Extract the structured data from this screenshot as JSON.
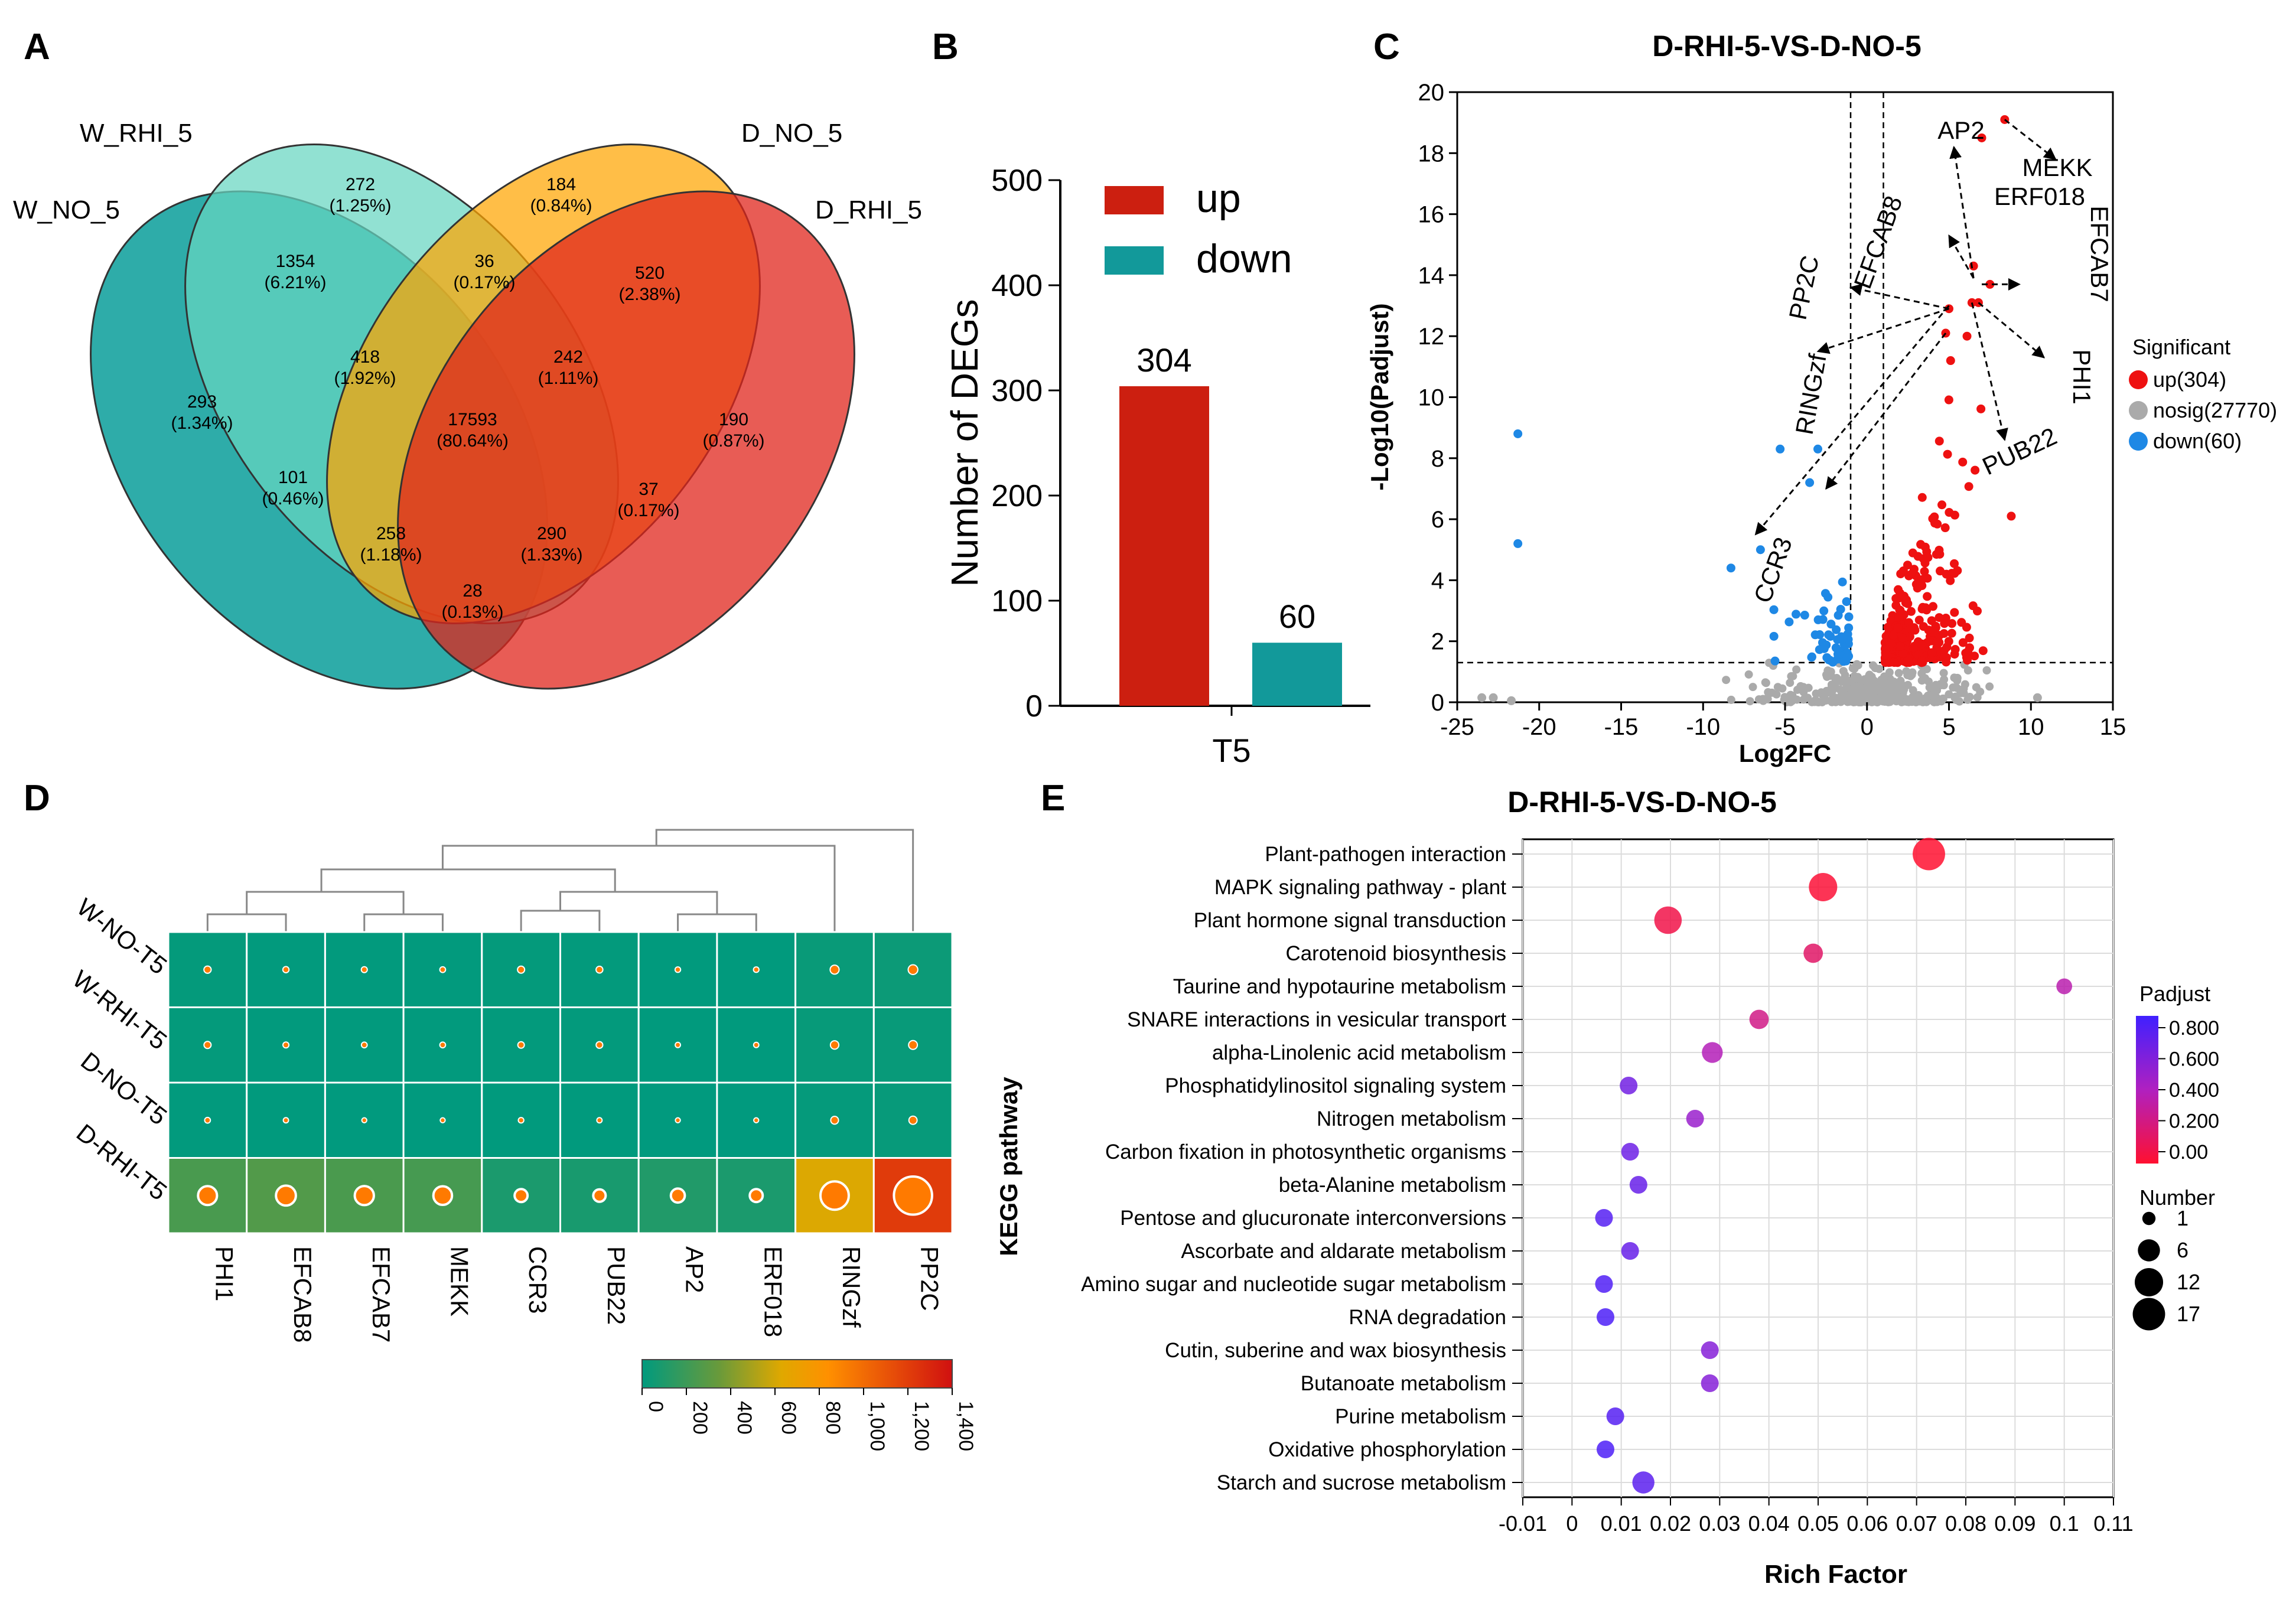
{
  "panel_letters": [
    "A",
    "B",
    "C",
    "D",
    "E"
  ],
  "chart_data": [
    {
      "panel": "A",
      "type": "venn",
      "sets": [
        {
          "name": "W_NO_5",
          "color": "#009a96"
        },
        {
          "name": "W_RHI_5",
          "color": "#66d6c0"
        },
        {
          "name": "D_NO_5",
          "color": "#ffa500"
        },
        {
          "name": "D_RHI_5",
          "color": "#e0261c"
        }
      ],
      "regions": [
        {
          "count": "272",
          "pct": "(1.25%)"
        },
        {
          "count": "184",
          "pct": "(0.84%)"
        },
        {
          "count": "36",
          "pct": "(0.17%)"
        },
        {
          "count": "1354",
          "pct": "(6.21%)"
        },
        {
          "count": "520",
          "pct": "(2.38%)"
        },
        {
          "count": "418",
          "pct": "(1.92%)"
        },
        {
          "count": "242",
          "pct": "(1.11%)"
        },
        {
          "count": "293",
          "pct": "(1.34%)"
        },
        {
          "count": "17593",
          "pct": "(80.64%)"
        },
        {
          "count": "190",
          "pct": "(0.87%)"
        },
        {
          "count": "101",
          "pct": "(0.46%)"
        },
        {
          "count": "37",
          "pct": "(0.17%)"
        },
        {
          "count": "258",
          "pct": "(1.18%)"
        },
        {
          "count": "290",
          "pct": "(1.33%)"
        },
        {
          "count": "28",
          "pct": "(0.13%)"
        }
      ]
    },
    {
      "panel": "B",
      "type": "bar",
      "categories": [
        "T5"
      ],
      "series": [
        {
          "name": "up",
          "values": [
            304
          ],
          "color": "#cc1f10"
        },
        {
          "name": "down",
          "values": [
            60
          ],
          "color": "#12999a"
        }
      ],
      "value_labels": [
        "304",
        "60"
      ],
      "ylabel": "Number of DEGs",
      "ylim": [
        0,
        500
      ],
      "yticks": [
        "0",
        "100",
        "200",
        "300",
        "400",
        "500"
      ]
    },
    {
      "panel": "C",
      "type": "scatter",
      "title": "D-RHI-5-VS-D-NO-5",
      "xlabel": "Log2FC",
      "ylabel": "-Log10(Padjust)",
      "xlim": [
        -25,
        15
      ],
      "ylim": [
        0,
        20
      ],
      "xticks": [
        "-25",
        "-20",
        "-15",
        "-10",
        "-5",
        "0",
        "5",
        "10",
        "15"
      ],
      "yticks": [
        "0",
        "2",
        "4",
        "6",
        "8",
        "10",
        "12",
        "14",
        "16",
        "18",
        "20"
      ],
      "vlines": [
        -1,
        1
      ],
      "hline": 1.3,
      "legend_title": "Significant",
      "legend": [
        {
          "label": "up(304)",
          "color": "#ee1111"
        },
        {
          "label": "nosig(27770)",
          "color": "#aaaaaa"
        },
        {
          "label": "down(60)",
          "color": "#1e88e5"
        }
      ],
      "outlier_points": [
        {
          "x": -21.3,
          "y": 8.8,
          "group": "down"
        },
        {
          "x": -21.3,
          "y": 5.2,
          "group": "down"
        },
        {
          "x": -23.5,
          "y": 0.15,
          "group": "nosig"
        },
        {
          "x": -22.8,
          "y": 0.15,
          "group": "nosig"
        },
        {
          "x": -21.7,
          "y": 0.05,
          "group": "nosig"
        },
        {
          "x": 10.4,
          "y": 0.15,
          "group": "nosig"
        },
        {
          "x": 8.8,
          "y": 6.1,
          "group": "up"
        },
        {
          "x": 8.4,
          "y": 19.1,
          "group": "up"
        },
        {
          "x": 7.0,
          "y": 18.5,
          "group": "up"
        },
        {
          "x": 7.5,
          "y": 13.7,
          "group": "up"
        },
        {
          "x": 6.8,
          "y": 13.1,
          "group": "up"
        },
        {
          "x": 6.5,
          "y": 14.3,
          "group": "up"
        },
        {
          "x": 6.4,
          "y": 13.1,
          "group": "up"
        },
        {
          "x": 5.0,
          "y": 12.9,
          "group": "up"
        },
        {
          "x": 4.8,
          "y": 12.1,
          "group": "up"
        },
        {
          "x": 6.1,
          "y": 12.0,
          "group": "up"
        },
        {
          "x": 5.1,
          "y": 11.2,
          "group": "up"
        },
        {
          "x": -5.3,
          "y": 8.3,
          "group": "down"
        },
        {
          "x": -3.0,
          "y": 8.3,
          "group": "down"
        },
        {
          "x": -3.5,
          "y": 7.2,
          "group": "down"
        },
        {
          "x": -8.3,
          "y": 4.4,
          "group": "down"
        },
        {
          "x": -6.5,
          "y": 5.0,
          "group": "down"
        }
      ],
      "annotations": [
        {
          "label": "AP2",
          "rotate": 0
        },
        {
          "label": "MEKK",
          "rotate": 0
        },
        {
          "label": "ERF018",
          "rotate": 0
        },
        {
          "label": "EFCAB8",
          "rotate": -70
        },
        {
          "label": "EFCAB7",
          "rotate": 90
        },
        {
          "label": "PHI1",
          "rotate": 90
        },
        {
          "label": "PP2C",
          "rotate": -78
        },
        {
          "label": "RINGzf",
          "rotate": -80
        },
        {
          "label": "PUB22",
          "rotate": -25
        },
        {
          "label": "CCR3",
          "rotate": -70
        }
      ]
    },
    {
      "panel": "D",
      "type": "heatmap",
      "rows": [
        "W-NO-T5",
        "W-RHI-T5",
        "D-NO-T5",
        "D-RHI-T5"
      ],
      "columns": [
        "PHI1",
        "EFCAB8",
        "EFCAB7",
        "MEKK",
        "CCR3",
        "PUB22",
        "AP2",
        "ERF018",
        "RINGzf",
        "PP2C"
      ],
      "values": [
        [
          14,
          7,
          6,
          5,
          13,
          11,
          4,
          4,
          30,
          38
        ],
        [
          13,
          6,
          5,
          5,
          9,
          10,
          3,
          3,
          24,
          28
        ],
        [
          5,
          3,
          2,
          2,
          4,
          3,
          2,
          2,
          18,
          22
        ],
        [
          240,
          270,
          245,
          230,
          90,
          80,
          110,
          90,
          620,
          1210
        ]
      ],
      "scale_min": 0,
      "scale_max": 1400,
      "scale_ticks": [
        "0",
        "200",
        "400",
        "600",
        "800",
        "1,000",
        "1,200",
        "1,400"
      ]
    },
    {
      "panel": "E",
      "type": "scatter",
      "title": "D-RHI-5-VS-D-NO-5",
      "xlabel": "Rich Factor",
      "ylabel": "KEGG pathway",
      "xlim": [
        -0.01,
        0.11
      ],
      "xticks": [
        "-0.01",
        "0",
        "0.01",
        "0.02",
        "0.03",
        "0.04",
        "0.05",
        "0.06",
        "0.07",
        "0.08",
        "0.09",
        "0.1",
        "0.11"
      ],
      "pathways": [
        {
          "name": "Plant-pathogen interaction",
          "x": 0.0725,
          "padj": 0.0,
          "number": 17
        },
        {
          "name": "MAPK signaling pathway - plant",
          "x": 0.051,
          "padj": 0.02,
          "number": 12
        },
        {
          "name": "Plant hormone signal transduction",
          "x": 0.0195,
          "padj": 0.07,
          "number": 11
        },
        {
          "name": "Carotenoid biosynthesis",
          "x": 0.049,
          "padj": 0.15,
          "number": 4
        },
        {
          "name": "Taurine and hypotaurine metabolism",
          "x": 0.1,
          "padj": 0.35,
          "number": 2
        },
        {
          "name": "SNARE interactions in vesicular transport",
          "x": 0.038,
          "padj": 0.24,
          "number": 4
        },
        {
          "name": "alpha-Linolenic acid metabolism",
          "x": 0.0285,
          "padj": 0.38,
          "number": 5
        },
        {
          "name": "Phosphatidylinositol signaling system",
          "x": 0.0115,
          "padj": 0.62,
          "number": 3
        },
        {
          "name": "Nitrogen metabolism",
          "x": 0.025,
          "padj": 0.48,
          "number": 3
        },
        {
          "name": "Carbon fixation in photosynthetic organisms",
          "x": 0.0118,
          "padj": 0.64,
          "number": 3
        },
        {
          "name": "beta-Alanine metabolism",
          "x": 0.0135,
          "padj": 0.66,
          "number": 3
        },
        {
          "name": "Pentose and glucuronate interconversions",
          "x": 0.0065,
          "padj": 0.72,
          "number": 3
        },
        {
          "name": "Ascorbate and aldarate metabolism",
          "x": 0.0118,
          "padj": 0.66,
          "number": 3
        },
        {
          "name": "Amino sugar and nucleotide sugar metabolism",
          "x": 0.0065,
          "padj": 0.74,
          "number": 3
        },
        {
          "name": "RNA degradation",
          "x": 0.0068,
          "padj": 0.75,
          "number": 3
        },
        {
          "name": "Cutin, suberine and wax biosynthesis",
          "x": 0.028,
          "padj": 0.55,
          "number": 3
        },
        {
          "name": "Butanoate metabolism",
          "x": 0.028,
          "padj": 0.55,
          "number": 3
        },
        {
          "name": "Purine metabolism",
          "x": 0.0088,
          "padj": 0.72,
          "number": 3
        },
        {
          "name": "Oxidative phosphorylation",
          "x": 0.0068,
          "padj": 0.75,
          "number": 3
        },
        {
          "name": "Starch and sucrose metabolism",
          "x": 0.0145,
          "padj": 0.7,
          "number": 6
        }
      ],
      "padj_legend_title": "Padjust",
      "padj_ticks": [
        "0.800",
        "0.600",
        "0.400",
        "0.200",
        "0.00"
      ],
      "number_legend_title": "Number",
      "number_legend": [
        "1",
        "6",
        "12",
        "17"
      ]
    }
  ]
}
